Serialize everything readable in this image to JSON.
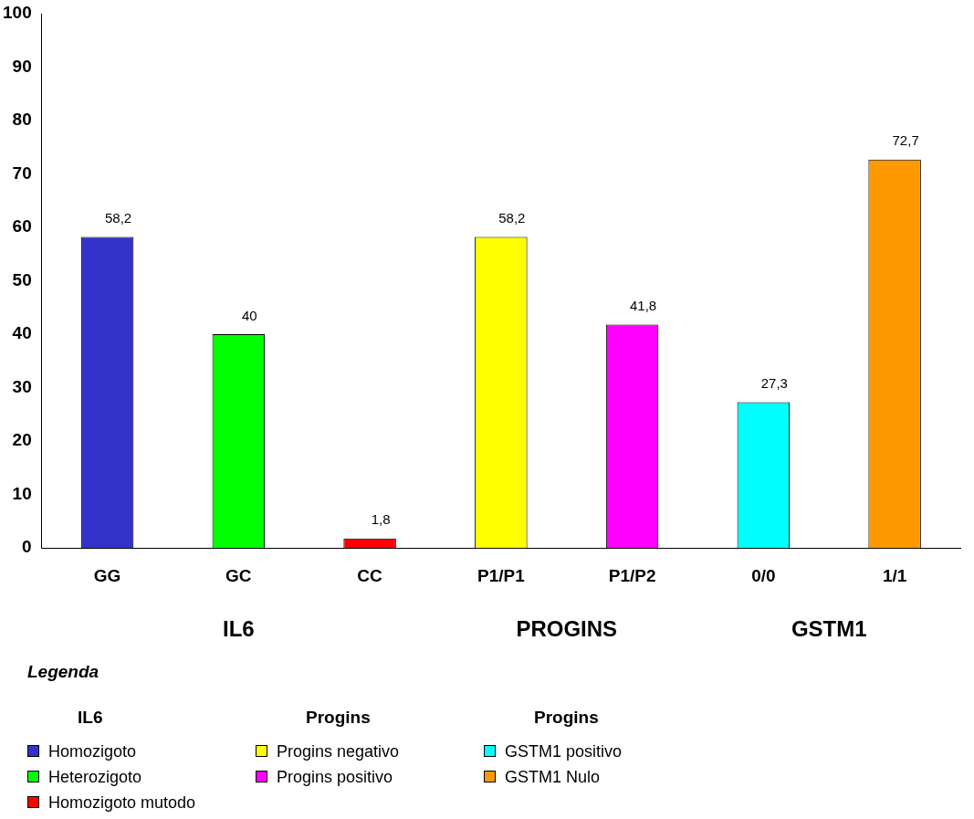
{
  "chart_data": {
    "type": "bar",
    "categories": [
      "GG",
      "GC",
      "CC",
      "P1/P1",
      "P1/P2",
      "0/0",
      "1/1"
    ],
    "stacked": true,
    "series": [
      {
        "name": "Homozigoto",
        "color": "#3333cc",
        "values": [
          58.2,
          null,
          null,
          null,
          null,
          null,
          null
        ],
        "value_labels": [
          "58,2",
          null,
          null,
          null,
          null,
          null,
          null
        ]
      },
      {
        "name": "Heterozigoto",
        "color": "#00ff00",
        "values": [
          null,
          40,
          null,
          null,
          null,
          null,
          null
        ],
        "value_labels": [
          null,
          "40",
          null,
          null,
          null,
          null,
          null
        ]
      },
      {
        "name": "Homozigoto mutodo",
        "color": "#ff0000",
        "values": [
          null,
          null,
          1.8,
          null,
          null,
          null,
          null
        ],
        "value_labels": [
          null,
          null,
          "1,8",
          null,
          null,
          null,
          null
        ]
      },
      {
        "name": "Progins negativo",
        "color": "#ffff00",
        "values": [
          null,
          null,
          null,
          58.2,
          null,
          null,
          null
        ],
        "value_labels": [
          null,
          null,
          null,
          "58,2",
          null,
          null,
          null
        ]
      },
      {
        "name": "Progins positivo",
        "color": "#ff00ff",
        "values": [
          null,
          null,
          null,
          null,
          41.8,
          null,
          null
        ],
        "value_labels": [
          null,
          null,
          null,
          null,
          "41,8",
          null,
          null
        ]
      },
      {
        "name": "GSTM1 positivo",
        "color": "#00ffff",
        "values": [
          null,
          null,
          null,
          null,
          null,
          27.3,
          null
        ],
        "value_labels": [
          null,
          null,
          null,
          null,
          null,
          "27,3",
          null
        ]
      },
      {
        "name": "GSTM1 Nulo",
        "color": "#ff9900",
        "values": [
          null,
          null,
          null,
          null,
          null,
          null,
          72.7
        ],
        "value_labels": [
          null,
          null,
          null,
          null,
          null,
          null,
          "72,7"
        ]
      }
    ],
    "ylim": [
      0,
      100
    ],
    "yticks": [
      0,
      10,
      20,
      30,
      40,
      50,
      60,
      70,
      80,
      90,
      100
    ],
    "grid": false,
    "legend": "bottom left",
    "legend_title": "Legenda",
    "annotations": [
      "IL6",
      "PROGINS",
      "GSTM1",
      "IL6",
      "Progins",
      "Progins"
    ]
  }
}
